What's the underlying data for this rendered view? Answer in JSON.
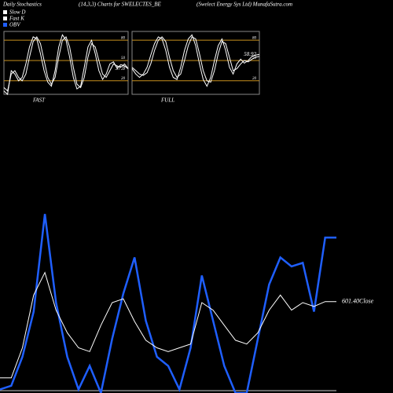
{
  "header": [
    "Daily Stochastics",
    "(14,3,3) Charts for SWELECTES_BE",
    "(Swelect Energy Sys Ltd) MunafaSutra.com"
  ],
  "chart_data": [
    {
      "type": "line",
      "label": "FAST",
      "end_value": 37.8,
      "ylim": [
        0,
        93
      ],
      "yticks": [
        80,
        50,
        20
      ],
      "series": [
        {
          "name": "Slow D",
          "color": "#ffffff",
          "values": [
            10,
            5,
            30,
            35,
            25,
            20,
            30,
            55,
            78,
            85,
            75,
            50,
            25,
            15,
            25,
            55,
            80,
            85,
            70,
            40,
            15,
            10,
            25,
            55,
            75,
            70,
            50,
            30,
            25,
            35,
            45,
            42,
            40,
            45,
            38
          ]
        },
        {
          "name": "Fast K",
          "color": "#ffffff",
          "values": [
            5,
            0,
            35,
            30,
            20,
            25,
            45,
            70,
            85,
            82,
            60,
            35,
            18,
            12,
            35,
            70,
            88,
            80,
            55,
            25,
            8,
            12,
            40,
            70,
            80,
            60,
            35,
            22,
            30,
            45,
            48,
            38,
            44,
            42,
            37.8
          ]
        }
      ]
    },
    {
      "type": "line",
      "label": "FULL",
      "end_value": 58.92,
      "ylim": [
        0,
        93
      ],
      "yticks": [
        80,
        50,
        20
      ],
      "series": [
        {
          "name": "Slow D",
          "color": "#ffffff",
          "values": [
            40,
            35,
            30,
            28,
            32,
            45,
            65,
            80,
            85,
            78,
            55,
            35,
            25,
            30,
            50,
            72,
            85,
            82,
            60,
            35,
            20,
            18,
            35,
            60,
            78,
            75,
            55,
            35,
            38,
            45,
            50,
            48,
            52,
            55,
            56
          ]
        },
        {
          "name": "Fast K",
          "color": "#ffffff",
          "values": [
            38,
            30,
            25,
            30,
            40,
            58,
            75,
            85,
            82,
            65,
            40,
            25,
            22,
            40,
            65,
            82,
            88,
            72,
            45,
            22,
            12,
            25,
            50,
            72,
            82,
            65,
            40,
            30,
            45,
            52,
            46,
            50,
            56,
            58,
            58.92
          ]
        }
      ]
    },
    {
      "type": "line",
      "close_label": "601.40Close",
      "ylim": [
        0,
        100
      ],
      "y2lim": [
        480,
        720
      ],
      "series": [
        {
          "name": "OBV",
          "color": "#1f5fff",
          "values": [
            2,
            4,
            20,
            45,
            99,
            50,
            20,
            2,
            15,
            0,
            30,
            55,
            75,
            40,
            20,
            15,
            2,
            25,
            65,
            40,
            15,
            0,
            0,
            30,
            60,
            75,
            70,
            72,
            45,
            86,
            86
          ]
        },
        {
          "color": "#ffffff",
          "axis": "y2",
          "values": [
            500,
            500,
            540,
            610,
            640,
            590,
            560,
            540,
            535,
            570,
            600,
            605,
            575,
            550,
            540,
            535,
            540,
            545,
            600,
            590,
            570,
            550,
            545,
            560,
            590,
            610,
            590,
            600,
            595,
            601.4,
            601.4
          ]
        }
      ]
    }
  ]
}
